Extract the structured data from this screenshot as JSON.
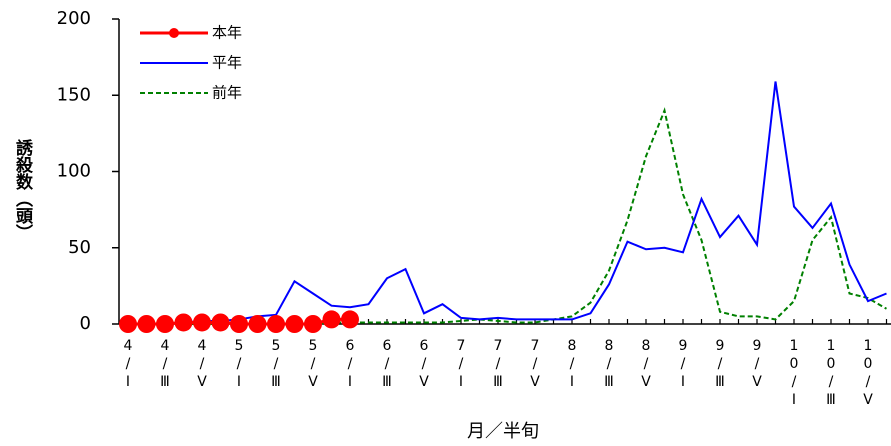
{
  "chart_data": {
    "type": "line",
    "y_label": "誘殺数（頭）",
    "x_label": "月／半旬",
    "categories": [
      "4/Ⅰ",
      null,
      "4/Ⅲ",
      null,
      "4/Ⅴ",
      null,
      "5/Ⅰ",
      null,
      "5/Ⅲ",
      null,
      "5/Ⅴ",
      null,
      "6/Ⅰ",
      null,
      "6/Ⅲ",
      null,
      "6/Ⅴ",
      null,
      "7/Ⅰ",
      null,
      "7/Ⅲ",
      null,
      "7/Ⅴ",
      null,
      "8/Ⅰ",
      null,
      "8/Ⅲ",
      null,
      "8/Ⅴ",
      null,
      "9/Ⅰ",
      null,
      "9/Ⅲ",
      null,
      "9/Ⅴ",
      null,
      "10/Ⅰ",
      null,
      "10/Ⅲ",
      null,
      "10/Ⅴ",
      null
    ],
    "series": [
      {
        "name": "本年",
        "color": "#ff0000",
        "line_style": "solid",
        "marker": "circle",
        "values": [
          0,
          0,
          0,
          1,
          1,
          1,
          0,
          0,
          0,
          0,
          0,
          3,
          3,
          null,
          null,
          null,
          null,
          null,
          null,
          null,
          null,
          null,
          null,
          null,
          null,
          null,
          null,
          null,
          null,
          null,
          null,
          null,
          null,
          null,
          null,
          null,
          null,
          null,
          null,
          null,
          null,
          null
        ]
      },
      {
        "name": "平年",
        "color": "#0000ff",
        "line_style": "solid",
        "marker": "none",
        "values": [
          0,
          0,
          0,
          1,
          2,
          2,
          3,
          5,
          6,
          28,
          20,
          12,
          11,
          13,
          30,
          36,
          7,
          13,
          4,
          3,
          4,
          3,
          3,
          3,
          3,
          7,
          26,
          54,
          49,
          50,
          47,
          82,
          57,
          71,
          52,
          159,
          77,
          63,
          79,
          39,
          15,
          20
        ]
      },
      {
        "name": "前年",
        "color": "#008000",
        "line_style": "dashed",
        "marker": "none",
        "values": [
          0,
          0,
          0,
          0,
          0,
          0,
          0,
          0,
          0,
          0,
          0,
          1,
          1,
          1,
          1,
          1,
          1,
          1,
          2,
          3,
          2,
          1,
          1,
          3,
          5,
          14,
          35,
          68,
          110,
          140,
          85,
          55,
          8,
          5,
          5,
          3,
          15,
          55,
          70,
          20,
          17,
          10
        ]
      }
    ],
    "ylim": [
      0,
      200
    ],
    "yticks": [
      0,
      50,
      100,
      150,
      200
    ],
    "grid": false,
    "legend": "upper left"
  }
}
